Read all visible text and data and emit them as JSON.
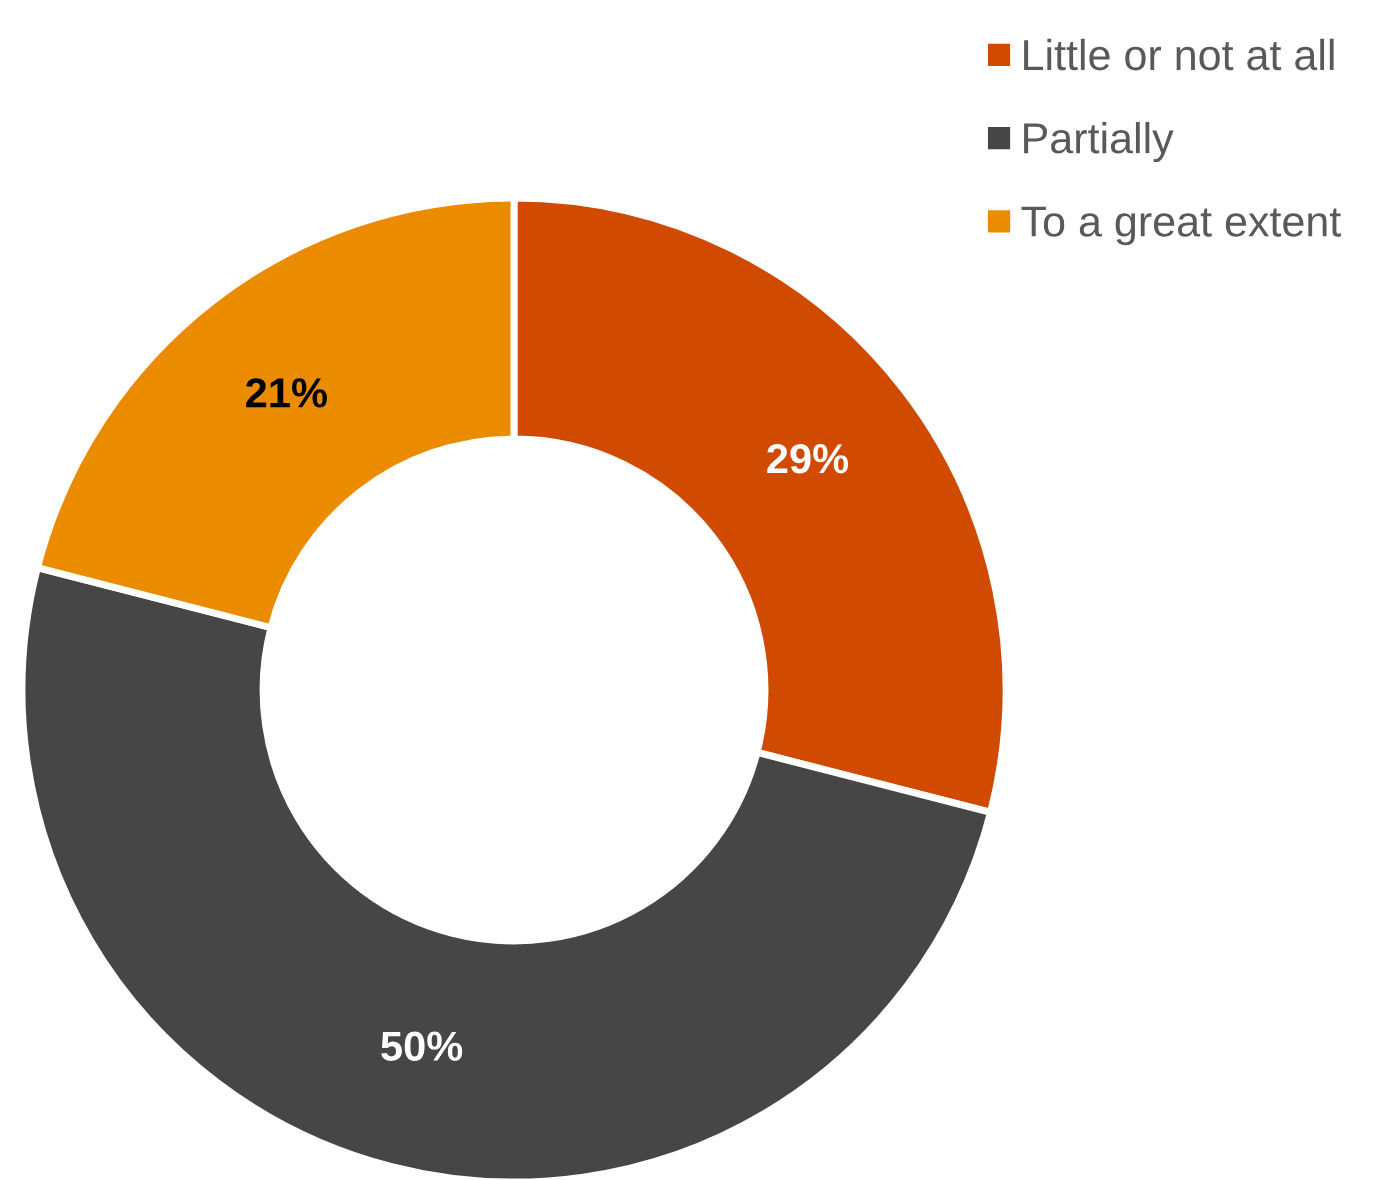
{
  "chart_data": {
    "type": "donut",
    "categories": [
      "Little or not at all",
      "Partially",
      "To a great extent"
    ],
    "values": [
      29,
      50,
      21
    ],
    "colors": [
      "#d04a02",
      "#464646",
      "#eb8c00"
    ],
    "value_labels": [
      "29%",
      "50%",
      "21%"
    ],
    "legend": "top right"
  }
}
